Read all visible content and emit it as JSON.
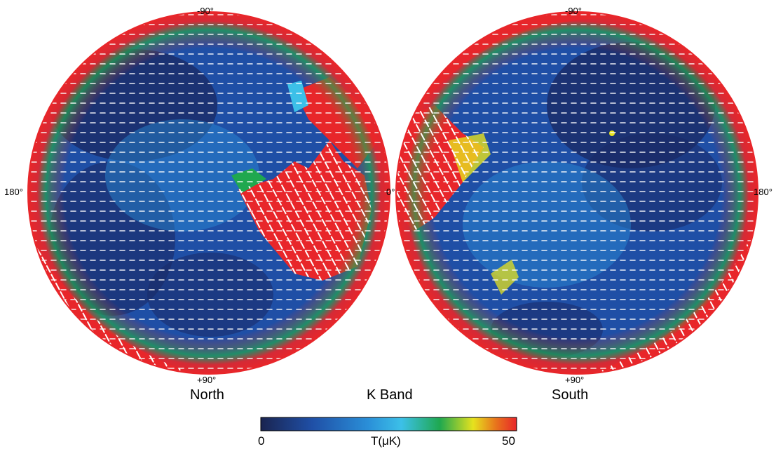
{
  "figure": {
    "band_title": "K Band",
    "colorbar": {
      "min_label": "0",
      "max_label": "50",
      "quantity_label": "T(μK)",
      "colors": [
        "#1a2450",
        "#1f4fa6",
        "#2a8fd8",
        "#3cc0e8",
        "#1fa84f",
        "#e6e21e",
        "#e8731c",
        "#e8262a"
      ]
    },
    "north": {
      "caption": "North",
      "label_top": "-90°",
      "label_bottom": "+90°",
      "label_left": "180°",
      "label_right": "0°"
    },
    "south": {
      "caption": "South",
      "label_top": "-90°",
      "label_bottom": "+90°",
      "label_left": "0°",
      "label_right": "180°"
    }
  }
}
